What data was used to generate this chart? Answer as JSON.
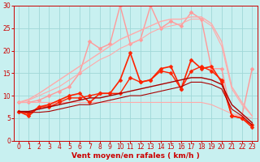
{
  "background_color": "#c8f0f0",
  "grid_color": "#a0d8d8",
  "x_values": [
    0,
    1,
    2,
    3,
    4,
    5,
    6,
    7,
    8,
    9,
    10,
    11,
    12,
    13,
    14,
    15,
    16,
    17,
    18,
    19,
    20,
    21,
    22,
    23
  ],
  "lines": [
    {
      "color": "#ff9999",
      "marker": "D",
      "markersize": 2.5,
      "linewidth": 1.0,
      "values": [
        8.5,
        8.5,
        9.0,
        10.0,
        11.0,
        12.0,
        15.0,
        22.0,
        20.5,
        21.5,
        30.0,
        21.5,
        22.5,
        30.0,
        25.0,
        26.5,
        25.5,
        28.5,
        27.0,
        16.0,
        16.0,
        5.5,
        5.5,
        16.0
      ]
    },
    {
      "color": "#ffaaaa",
      "marker": null,
      "markersize": 0,
      "linewidth": 1.0,
      "values": [
        8.5,
        9.2,
        10.5,
        12.0,
        13.5,
        15.0,
        16.5,
        18.0,
        19.5,
        21.0,
        22.5,
        23.5,
        24.5,
        25.5,
        26.5,
        27.0,
        27.0,
        27.5,
        27.5,
        26.0,
        22.0,
        12.0,
        8.5,
        5.5
      ]
    },
    {
      "color": "#ffaaaa",
      "marker": null,
      "markersize": 0,
      "linewidth": 0.8,
      "values": [
        8.5,
        9.0,
        10.0,
        11.0,
        12.0,
        13.5,
        15.0,
        16.5,
        18.0,
        19.0,
        20.5,
        21.5,
        22.5,
        24.0,
        25.0,
        25.5,
        26.0,
        27.0,
        27.0,
        25.5,
        21.0,
        11.5,
        8.0,
        5.5
      ]
    },
    {
      "color": "#ffaaaa",
      "marker": null,
      "markersize": 0,
      "linewidth": 0.8,
      "values": [
        8.5,
        8.5,
        8.5,
        8.5,
        8.5,
        8.5,
        8.5,
        8.5,
        8.5,
        8.5,
        8.5,
        8.5,
        8.5,
        8.5,
        8.5,
        8.5,
        8.5,
        8.5,
        8.5,
        8.0,
        7.0,
        6.0,
        5.5,
        5.0
      ]
    },
    {
      "color": "#ff2200",
      "marker": "D",
      "markersize": 2.5,
      "linewidth": 1.2,
      "values": [
        6.5,
        5.5,
        7.5,
        8.0,
        9.0,
        10.0,
        10.5,
        8.5,
        10.5,
        10.5,
        13.5,
        19.5,
        13.0,
        13.5,
        16.0,
        16.5,
        11.5,
        18.0,
        16.0,
        16.5,
        13.0,
        5.5,
        5.0,
        3.0
      ]
    },
    {
      "color": "#ff2200",
      "marker": "D",
      "markersize": 2.5,
      "linewidth": 1.0,
      "values": [
        6.5,
        6.0,
        7.5,
        7.5,
        8.5,
        9.5,
        9.5,
        10.0,
        10.5,
        10.5,
        10.5,
        14.0,
        13.0,
        13.5,
        15.5,
        15.0,
        11.5,
        15.5,
        16.5,
        15.5,
        13.5,
        5.5,
        5.0,
        3.5
      ]
    },
    {
      "color": "#aa0000",
      "marker": null,
      "markersize": 0,
      "linewidth": 1.0,
      "values": [
        6.5,
        6.5,
        7.0,
        7.5,
        8.0,
        8.5,
        9.0,
        9.5,
        9.5,
        10.0,
        10.5,
        11.0,
        11.5,
        12.0,
        12.5,
        13.0,
        13.5,
        14.0,
        14.0,
        13.5,
        12.5,
        8.0,
        6.0,
        4.0
      ]
    },
    {
      "color": "#aa0000",
      "marker": null,
      "markersize": 0,
      "linewidth": 0.8,
      "values": [
        6.5,
        6.3,
        6.3,
        6.5,
        7.0,
        7.5,
        8.0,
        8.0,
        8.5,
        9.0,
        9.5,
        10.0,
        10.0,
        10.5,
        11.0,
        11.5,
        12.0,
        13.0,
        13.0,
        12.5,
        11.5,
        7.0,
        5.5,
        3.5
      ]
    }
  ],
  "xlabel": "Vent moyen/en rafales ( km/h )",
  "xlim": [
    -0.5,
    23.5
  ],
  "ylim": [
    0,
    30
  ],
  "yticks": [
    0,
    5,
    10,
    15,
    20,
    25,
    30
  ],
  "xticks": [
    0,
    1,
    2,
    3,
    4,
    5,
    6,
    7,
    8,
    9,
    10,
    11,
    12,
    13,
    14,
    15,
    16,
    17,
    18,
    19,
    20,
    21,
    22,
    23
  ],
  "xlabel_fontsize": 6.5,
  "tick_fontsize": 5.5
}
